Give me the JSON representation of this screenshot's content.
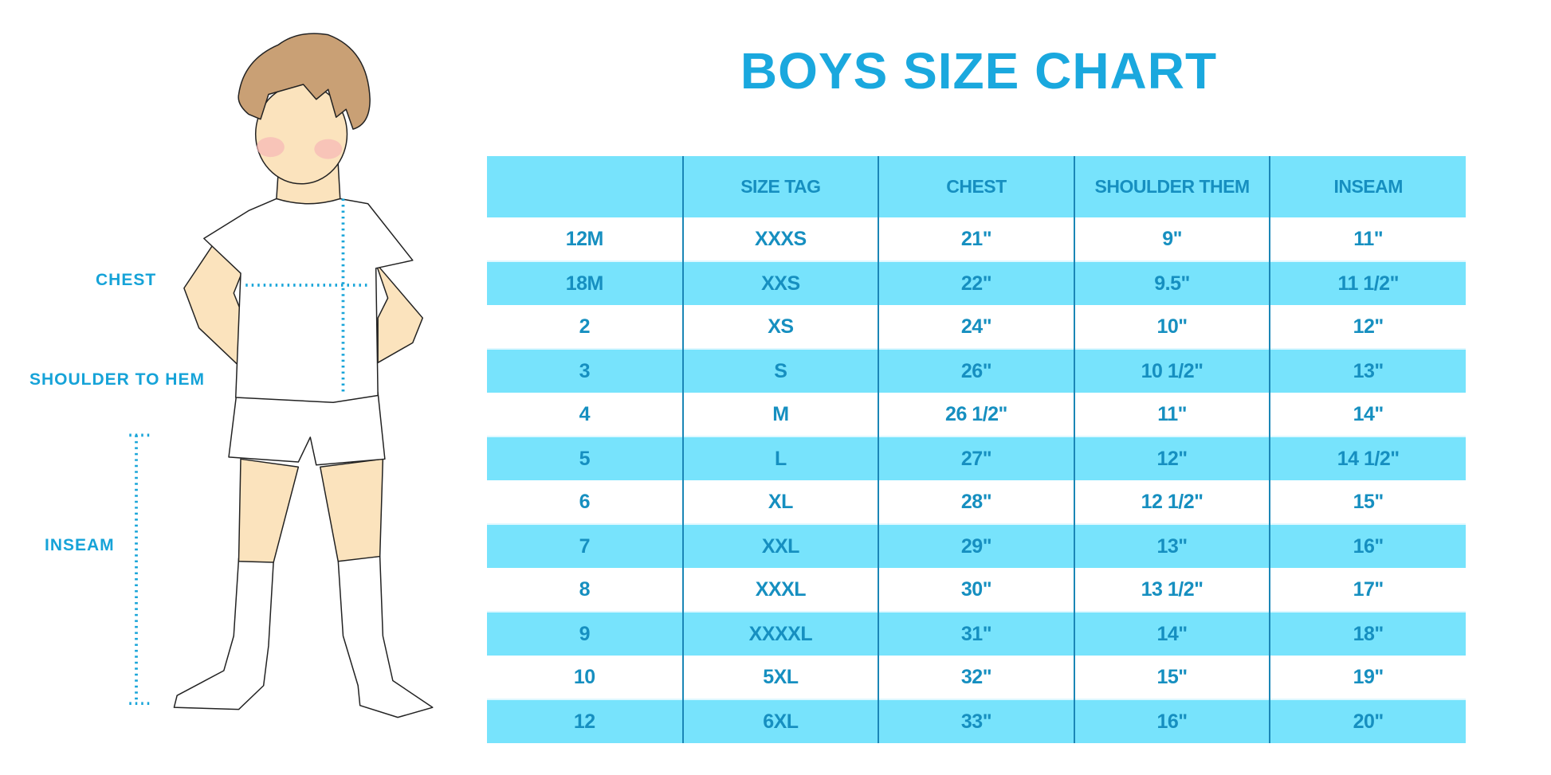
{
  "title": "BOYS SIZE CHART",
  "figure": {
    "labels": {
      "chest": "CHEST",
      "shoulder_to_hem": "SHOULDER TO HEM",
      "inseam": "INSEAM"
    }
  },
  "colors": {
    "accent": "#1aa8de",
    "row_fill": "#77e3fc",
    "text": "#168fc0"
  },
  "table": {
    "headers": [
      "",
      "SIZE TAG",
      "CHEST",
      "SHOULDER THEM",
      "INSEAM"
    ],
    "rows": [
      [
        "12M",
        "XXXS",
        "21\"",
        "9\"",
        "11\""
      ],
      [
        "18M",
        "XXS",
        "22\"",
        "9.5\"",
        "11 1/2\""
      ],
      [
        "2",
        "XS",
        "24\"",
        "10\"",
        "12\""
      ],
      [
        "3",
        "S",
        "26\"",
        "10 1/2\"",
        "13\""
      ],
      [
        "4",
        "M",
        "26 1/2\"",
        "11\"",
        "14\""
      ],
      [
        "5",
        "L",
        "27\"",
        "12\"",
        "14 1/2\""
      ],
      [
        "6",
        "XL",
        "28\"",
        "12 1/2\"",
        "15\""
      ],
      [
        "7",
        "XXL",
        "29\"",
        "13\"",
        "16\""
      ],
      [
        "8",
        "XXXL",
        "30\"",
        "13 1/2\"",
        "17\""
      ],
      [
        "9",
        "XXXXL",
        "31\"",
        "14\"",
        "18\""
      ],
      [
        "10",
        "5XL",
        "32\"",
        "15\"",
        "19\""
      ],
      [
        "12",
        "6XL",
        "33\"",
        "16\"",
        "20\""
      ]
    ]
  }
}
